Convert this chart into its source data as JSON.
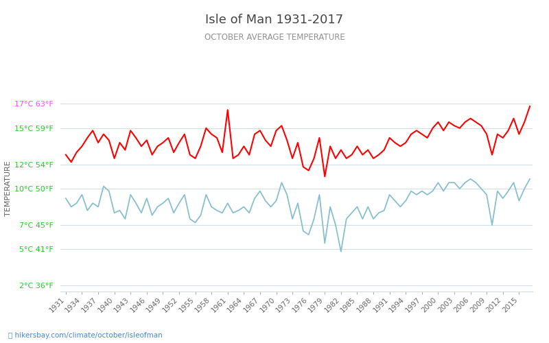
{
  "title": "Isle of Man 1931-2017",
  "subtitle": "OCTOBER AVERAGE TEMPERATURE",
  "ylabel": "TEMPERATURE",
  "xlabel_url": "hikersbay.com/climate/october/isleofman",
  "years": [
    1931,
    1932,
    1933,
    1934,
    1935,
    1936,
    1937,
    1938,
    1939,
    1940,
    1941,
    1942,
    1943,
    1944,
    1945,
    1946,
    1947,
    1948,
    1949,
    1950,
    1951,
    1952,
    1953,
    1954,
    1955,
    1956,
    1957,
    1958,
    1959,
    1960,
    1961,
    1962,
    1963,
    1964,
    1965,
    1966,
    1967,
    1968,
    1969,
    1970,
    1971,
    1972,
    1973,
    1974,
    1975,
    1976,
    1977,
    1978,
    1979,
    1980,
    1981,
    1982,
    1983,
    1984,
    1985,
    1986,
    1987,
    1988,
    1989,
    1990,
    1991,
    1992,
    1993,
    1994,
    1995,
    1996,
    1997,
    1998,
    1999,
    2000,
    2001,
    2002,
    2003,
    2004,
    2005,
    2006,
    2007,
    2008,
    2009,
    2010,
    2011,
    2012,
    2013,
    2014,
    2015,
    2016,
    2017
  ],
  "day_temps": [
    12.8,
    12.2,
    13.0,
    13.5,
    14.2,
    14.8,
    13.8,
    14.5,
    14.0,
    12.5,
    13.8,
    13.2,
    14.8,
    14.2,
    13.5,
    14.0,
    12.8,
    13.5,
    13.8,
    14.2,
    13.0,
    13.8,
    14.5,
    12.8,
    12.5,
    13.5,
    15.0,
    14.5,
    14.2,
    13.0,
    16.5,
    12.5,
    12.8,
    13.5,
    12.8,
    14.5,
    14.8,
    14.0,
    13.5,
    14.8,
    15.2,
    14.0,
    12.5,
    13.8,
    11.8,
    11.5,
    12.5,
    14.2,
    11.0,
    13.5,
    12.5,
    13.2,
    12.5,
    12.8,
    13.5,
    12.8,
    13.2,
    12.5,
    12.8,
    13.2,
    14.2,
    13.8,
    13.5,
    13.8,
    14.5,
    14.8,
    14.5,
    14.2,
    15.0,
    15.5,
    14.8,
    15.5,
    15.2,
    15.0,
    15.5,
    15.8,
    15.5,
    15.2,
    14.5,
    12.8,
    14.5,
    14.2,
    14.8,
    15.8,
    14.5,
    15.5,
    16.8
  ],
  "night_temps": [
    9.2,
    8.5,
    8.8,
    9.5,
    8.2,
    8.8,
    8.5,
    10.2,
    9.8,
    8.0,
    8.2,
    7.5,
    9.5,
    8.8,
    8.0,
    9.2,
    7.8,
    8.5,
    8.8,
    9.2,
    8.0,
    8.8,
    9.5,
    7.5,
    7.2,
    7.8,
    9.5,
    8.5,
    8.2,
    8.0,
    8.8,
    8.0,
    8.2,
    8.5,
    8.0,
    9.2,
    9.8,
    9.0,
    8.5,
    9.0,
    10.5,
    9.5,
    7.5,
    8.8,
    6.5,
    6.2,
    7.5,
    9.5,
    5.5,
    8.5,
    7.0,
    4.8,
    7.5,
    8.0,
    8.5,
    7.5,
    8.5,
    7.5,
    8.0,
    8.2,
    9.5,
    9.0,
    8.5,
    9.0,
    9.8,
    9.5,
    9.8,
    9.5,
    9.8,
    10.5,
    9.8,
    10.5,
    10.5,
    10.0,
    10.5,
    10.8,
    10.5,
    10.0,
    9.5,
    7.0,
    9.8,
    9.2,
    9.8,
    10.5,
    9.0,
    10.0,
    10.8
  ],
  "yticks_c": [
    2,
    5,
    7,
    10,
    12,
    15,
    17
  ],
  "yticks_f": [
    36,
    41,
    45,
    50,
    54,
    59,
    63
  ],
  "ytick_colors": [
    "#22cc22",
    "#22cc22",
    "#22cc22",
    "#22cc22",
    "#22cc22",
    "#22cc22",
    "#ff44ff"
  ],
  "xtick_years": [
    1931,
    1934,
    1937,
    1940,
    1943,
    1946,
    1949,
    1952,
    1955,
    1958,
    1961,
    1964,
    1967,
    1970,
    1973,
    1976,
    1979,
    1982,
    1985,
    1988,
    1991,
    1994,
    1997,
    2000,
    2003,
    2006,
    2009,
    2012,
    2015
  ],
  "day_color": "#ff0000",
  "night_color": "#88bfcf",
  "grid_color": "#d0dce8",
  "bg_color": "#ffffff",
  "title_color": "#454545",
  "subtitle_color": "#909090",
  "ylabel_color": "#606060",
  "url_color": "#4488cc",
  "ylim": [
    1.5,
    18.5
  ]
}
